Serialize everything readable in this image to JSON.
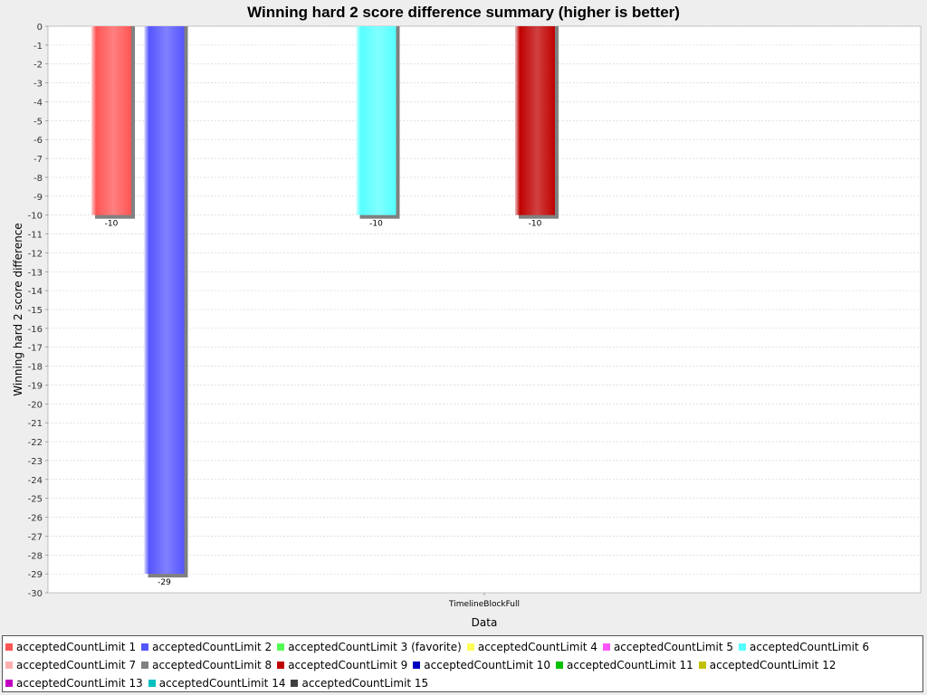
{
  "chart_data": {
    "type": "bar",
    "title": "Winning hard 2 score difference summary (higher is better)",
    "xlabel": "Data",
    "ylabel": "Winning hard 2 score difference",
    "categories": [
      "TimelineBlockFull"
    ],
    "ylim": [
      -30,
      0
    ],
    "yticks": [
      0,
      -1,
      -2,
      -3,
      -4,
      -5,
      -6,
      -7,
      -8,
      -9,
      -10,
      -11,
      -12,
      -13,
      -14,
      -15,
      -16,
      -17,
      -18,
      -19,
      -20,
      -21,
      -22,
      -23,
      -24,
      -25,
      -26,
      -27,
      -28,
      -29,
      -30
    ],
    "grid": true,
    "legend_position": "bottom",
    "series": [
      {
        "name": "acceptedCountLimit 1",
        "color": "#ff5555",
        "values": [
          -10
        ]
      },
      {
        "name": "acceptedCountLimit 2",
        "color": "#5555ff",
        "values": [
          -29
        ]
      },
      {
        "name": "acceptedCountLimit 3 (favorite)",
        "color": "#55ff55",
        "values": [
          null
        ]
      },
      {
        "name": "acceptedCountLimit 4",
        "color": "#ffff55",
        "values": [
          null
        ]
      },
      {
        "name": "acceptedCountLimit 5",
        "color": "#ff55ff",
        "values": [
          null
        ]
      },
      {
        "name": "acceptedCountLimit 6",
        "color": "#55ffff",
        "values": [
          -10
        ]
      },
      {
        "name": "acceptedCountLimit 7",
        "color": "#ffafaf",
        "values": [
          null
        ]
      },
      {
        "name": "acceptedCountLimit 8",
        "color": "#808080",
        "values": [
          null
        ]
      },
      {
        "name": "acceptedCountLimit 9",
        "color": "#c00000",
        "values": [
          -10
        ]
      },
      {
        "name": "acceptedCountLimit 10",
        "color": "#0000c0",
        "values": [
          null
        ]
      },
      {
        "name": "acceptedCountLimit 11",
        "color": "#00c000",
        "values": [
          null
        ]
      },
      {
        "name": "acceptedCountLimit 12",
        "color": "#c0c000",
        "values": [
          null
        ]
      },
      {
        "name": "acceptedCountLimit 13",
        "color": "#c000c0",
        "values": [
          null
        ]
      },
      {
        "name": "acceptedCountLimit 14",
        "color": "#00c0c0",
        "values": [
          null
        ]
      },
      {
        "name": "acceptedCountLimit 15",
        "color": "#404040",
        "values": [
          null
        ]
      }
    ]
  }
}
